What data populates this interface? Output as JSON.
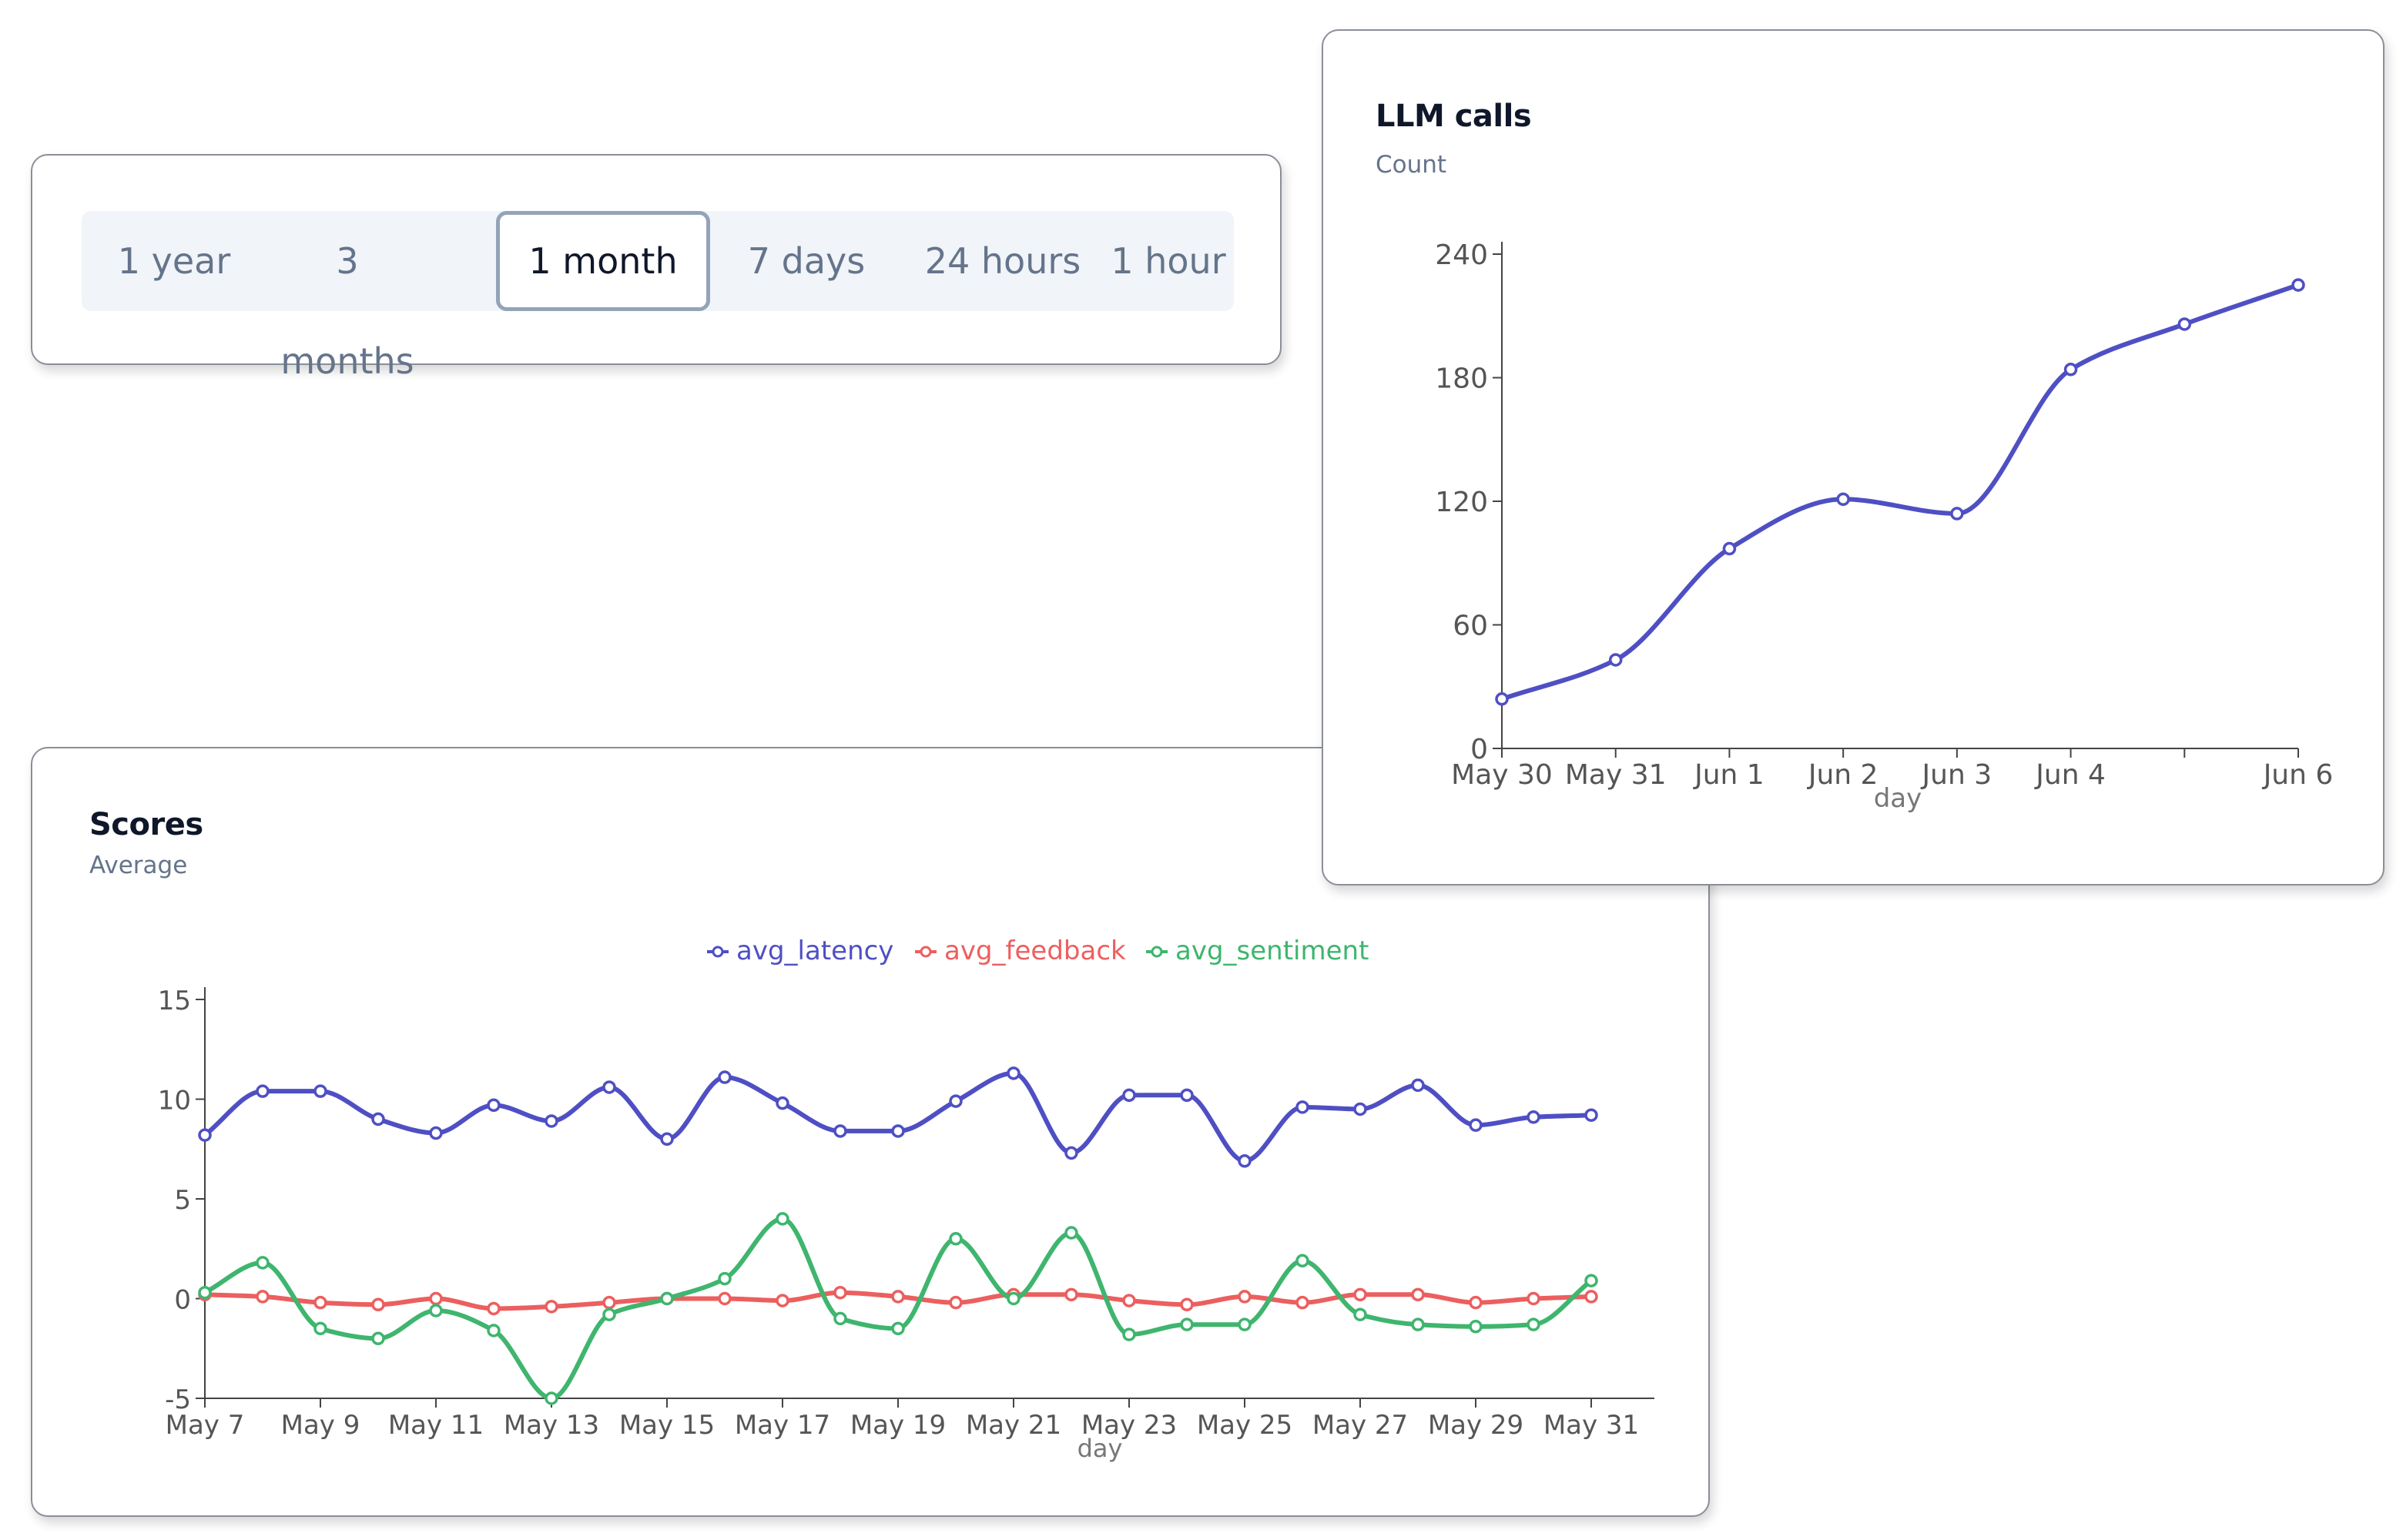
{
  "time_range": {
    "options": [
      "1 year",
      "3 months",
      "1 month",
      "7 days",
      "24 hours",
      "1 hour"
    ],
    "selected": "1 month"
  },
  "colors": {
    "latency": "#4f4fc4",
    "feedback": "#ec5f5f",
    "sentiment": "#3fb56e",
    "axis": "#444444",
    "tick_label": "#555555"
  },
  "chart_data": [
    {
      "id": "llm_calls",
      "type": "line",
      "title": "LLM calls",
      "subtitle": "Count",
      "xlabel": "day",
      "x": [
        "2024-05-30",
        "2024-05-31",
        "2024-06-01",
        "2024-06-02",
        "2024-06-03",
        "2024-06-04",
        "2024-06-05",
        "2024-06-06"
      ],
      "x_tick_labels": [
        "May 30",
        "May 31",
        "Jun 1",
        "Jun 2",
        "Jun 3",
        "Jun 4",
        "",
        "Jun 6"
      ],
      "y_ticks": [
        0,
        60,
        120,
        180,
        240
      ],
      "ylim": [
        0,
        240
      ],
      "series": [
        {
          "values": [
            24,
            43,
            97,
            121,
            114,
            184,
            206,
            225
          ]
        }
      ]
    },
    {
      "id": "scores",
      "type": "line",
      "title": "Scores",
      "subtitle": "Average",
      "xlabel": "day",
      "x": [
        "2024-05-07",
        "2024-05-08",
        "2024-05-09",
        "2024-05-10",
        "2024-05-11",
        "2024-05-12",
        "2024-05-13",
        "2024-05-14",
        "2024-05-15",
        "2024-05-16",
        "2024-05-17",
        "2024-05-18",
        "2024-05-19",
        "2024-05-20",
        "2024-05-21",
        "2024-05-22",
        "2024-05-23",
        "2024-05-24",
        "2024-05-25",
        "2024-05-26",
        "2024-05-27",
        "2024-05-28",
        "2024-05-29",
        "2024-05-30",
        "2024-05-31"
      ],
      "x_tick_labels": [
        "May 7",
        "May 9",
        "May 11",
        "May 13",
        "May 15",
        "May 17",
        "May 19",
        "May 21",
        "May 23",
        "May 25",
        "May 27",
        "May 29",
        "May 31"
      ],
      "y_ticks": [
        -5,
        0,
        5,
        10,
        15
      ],
      "ylim": [
        -5,
        15
      ],
      "legend_position": "top-center",
      "series": [
        {
          "name": "avg_latency",
          "color": "#4f4fc4",
          "values": [
            8.2,
            10.4,
            10.4,
            9.0,
            8.3,
            9.7,
            8.9,
            10.6,
            8.0,
            11.1,
            9.8,
            8.4,
            8.4,
            9.9,
            11.3,
            7.3,
            10.2,
            10.2,
            6.9,
            9.6,
            9.5,
            10.7,
            8.7,
            9.1,
            9.2
          ]
        },
        {
          "name": "avg_feedback",
          "color": "#ec5f5f",
          "values": [
            0.2,
            0.1,
            -0.2,
            -0.3,
            0.0,
            -0.5,
            -0.4,
            -0.2,
            0.0,
            0.0,
            -0.1,
            0.3,
            0.1,
            -0.2,
            0.2,
            0.2,
            -0.1,
            -0.3,
            0.1,
            -0.2,
            0.2,
            0.2,
            -0.2,
            0.0,
            0.1
          ]
        },
        {
          "name": "avg_sentiment",
          "color": "#3fb56e",
          "values": [
            0.3,
            1.8,
            -1.5,
            -2.0,
            -0.6,
            -1.6,
            -5.0,
            -0.8,
            0.0,
            1.0,
            4.0,
            -1.0,
            -1.5,
            3.0,
            0.0,
            3.3,
            -1.8,
            -1.3,
            -1.3,
            1.9,
            -0.8,
            -1.3,
            -1.4,
            -1.3,
            0.9
          ]
        }
      ]
    }
  ]
}
